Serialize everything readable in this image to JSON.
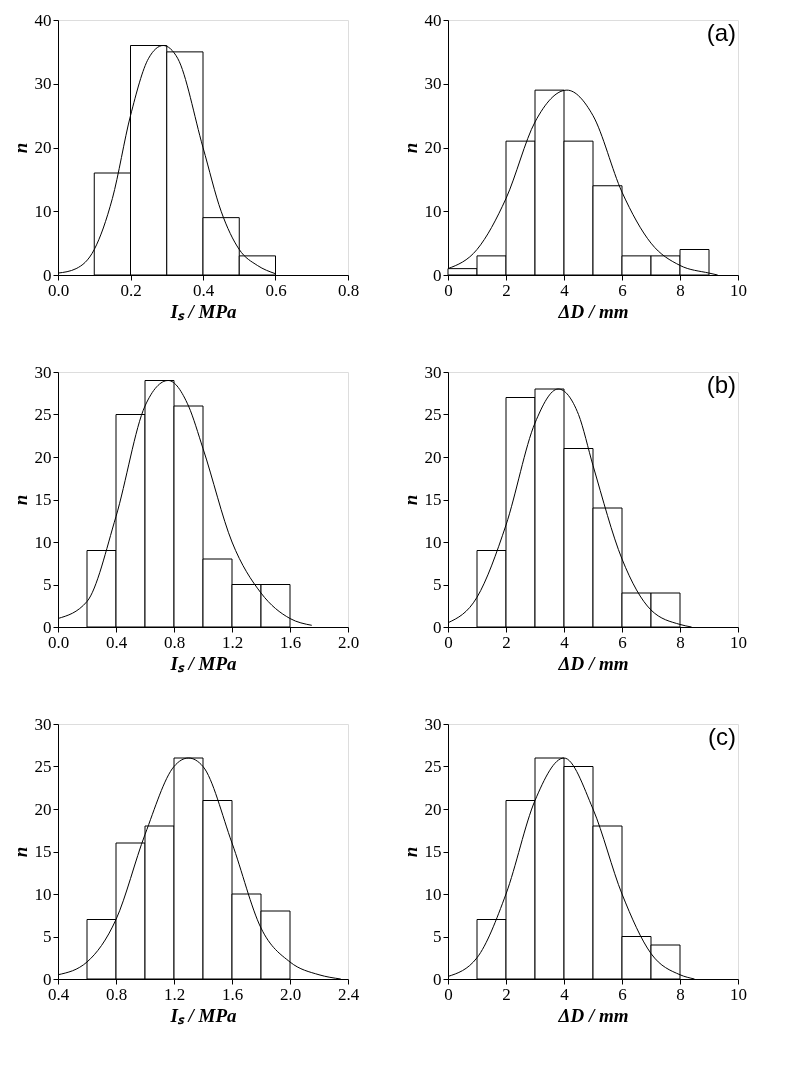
{
  "chart_data": [
    {
      "type": "histogram",
      "xlabel": "Iₛ / MPa",
      "ylabel": "n",
      "xlim": [
        0,
        0.8
      ],
      "xticks": [
        {
          "value": 0,
          "label": "0.0"
        },
        {
          "value": 0.2,
          "label": "0.2"
        },
        {
          "value": 0.4,
          "label": "0.4"
        },
        {
          "value": 0.6,
          "label": "0.6"
        },
        {
          "value": 0.8,
          "label": "0.8"
        }
      ],
      "ylim": [
        0,
        40
      ],
      "yticks": [
        0,
        10,
        20,
        30,
        40
      ],
      "grid": false,
      "series": [
        {
          "color": "#ffffff",
          "bins": [
            0.1,
            0.2,
            0.3,
            0.4,
            0.5,
            0.6
          ],
          "values": [
            16,
            36,
            35,
            9,
            3
          ]
        },
        {
          "type": "line",
          "color": "#000000",
          "x": [
            0,
            0.05,
            0.1,
            0.15,
            0.2,
            0.25,
            0.29,
            0.33,
            0.4,
            0.45,
            0.5,
            0.55,
            0.6
          ],
          "values": [
            0.3,
            1,
            4,
            12,
            25,
            34,
            36,
            34,
            20,
            10,
            4,
            1.5,
            0.2
          ]
        }
      ]
    },
    {
      "type": "histogram",
      "xlabel": "ΔD / mm",
      "ylabel": "n",
      "annotations": [
        "(a)"
      ],
      "xlim": [
        0,
        10
      ],
      "xticks": [
        0,
        2,
        4,
        6,
        8,
        10
      ],
      "ylim": [
        0,
        40
      ],
      "yticks": [
        0,
        10,
        20,
        30,
        40
      ],
      "grid": false,
      "series": [
        {
          "color": "#ffffff",
          "bins": [
            0,
            1,
            2,
            3,
            4,
            5,
            6,
            7,
            8,
            9
          ],
          "values": [
            1,
            3,
            21,
            29,
            21,
            14,
            3,
            3,
            4
          ]
        },
        {
          "type": "line",
          "color": "#000000",
          "x": [
            0,
            1,
            2,
            3,
            4.1,
            5,
            6,
            7,
            8,
            9,
            9.3
          ],
          "values": [
            1,
            4,
            12,
            24,
            29,
            25,
            13,
            5,
            1.5,
            0.3,
            0
          ]
        }
      ]
    },
    {
      "type": "histogram",
      "xlabel": "Iₛ / MPa",
      "ylabel": "n",
      "xlim": [
        0,
        2
      ],
      "xticks": [
        {
          "value": 0,
          "label": "0.0"
        },
        {
          "value": 0.4,
          "label": "0.4"
        },
        {
          "value": 0.8,
          "label": "0.8"
        },
        {
          "value": 1.2,
          "label": "1.2"
        },
        {
          "value": 1.6,
          "label": "1.6"
        },
        {
          "value": 2,
          "label": "2.0"
        }
      ],
      "ylim": [
        0,
        30
      ],
      "yticks": [
        0,
        5,
        10,
        15,
        20,
        25,
        30
      ],
      "grid": false,
      "series": [
        {
          "color": "#ffffff",
          "bins": [
            0.2,
            0.4,
            0.6,
            0.8,
            1.0,
            1.2,
            1.4,
            1.6
          ],
          "values": [
            9,
            25,
            29,
            26,
            8,
            5,
            5
          ]
        },
        {
          "type": "line",
          "color": "#000000",
          "x": [
            0,
            0.2,
            0.4,
            0.6,
            0.76,
            0.9,
            1.0,
            1.2,
            1.4,
            1.6,
            1.75
          ],
          "values": [
            1,
            3,
            13,
            26,
            29,
            26,
            21,
            10,
            4,
            1,
            0.2
          ]
        }
      ]
    },
    {
      "type": "histogram",
      "xlabel": "ΔD / mm",
      "ylabel": "n",
      "annotations": [
        "(b)"
      ],
      "xlim": [
        0,
        10
      ],
      "xticks": [
        0,
        2,
        4,
        6,
        8,
        10
      ],
      "ylim": [
        0,
        30
      ],
      "yticks": [
        0,
        5,
        10,
        15,
        20,
        25,
        30
      ],
      "grid": false,
      "series": [
        {
          "color": "#ffffff",
          "bins": [
            1,
            2,
            3,
            4,
            5,
            6,
            7,
            8
          ],
          "values": [
            9,
            27,
            28,
            21,
            14,
            4,
            4
          ]
        },
        {
          "type": "line",
          "color": "#000000",
          "x": [
            0,
            1,
            2,
            3,
            3.8,
            4.5,
            5,
            6,
            7,
            8,
            8.4
          ],
          "values": [
            0.5,
            3.5,
            12,
            24,
            28,
            25,
            19,
            8,
            2,
            0.3,
            0
          ]
        }
      ]
    },
    {
      "type": "histogram",
      "xlabel": "Iₛ / MPa",
      "ylabel": "n",
      "xlim": [
        0.4,
        2.4
      ],
      "xticks": [
        0.4,
        0.8,
        1.2,
        1.6,
        {
          "value": 2,
          "label": "2.0"
        },
        2.4
      ],
      "ylim": [
        0,
        30
      ],
      "yticks": [
        0,
        5,
        10,
        15,
        20,
        25,
        30
      ],
      "grid": false,
      "series": [
        {
          "color": "#ffffff",
          "bins": [
            0.6,
            0.8,
            1.0,
            1.2,
            1.4,
            1.6,
            1.8,
            2.0
          ],
          "values": [
            7,
            16,
            18,
            26,
            21,
            10,
            8
          ]
        },
        {
          "type": "line",
          "color": "#000000",
          "x": [
            0.4,
            0.6,
            0.8,
            1.0,
            1.2,
            1.3,
            1.4,
            1.6,
            1.8,
            2.0,
            2.2,
            2.35
          ],
          "values": [
            0.5,
            2,
            7,
            17,
            25,
            26,
            25,
            16,
            6,
            2,
            0.5,
            0
          ]
        }
      ]
    },
    {
      "type": "histogram",
      "xlabel": "ΔD / mm",
      "ylabel": "n",
      "annotations": [
        "(c)"
      ],
      "xlim": [
        0,
        10
      ],
      "xticks": [
        0,
        2,
        4,
        6,
        8,
        10
      ],
      "ylim": [
        0,
        30
      ],
      "yticks": [
        0,
        5,
        10,
        15,
        20,
        25,
        30
      ],
      "grid": false,
      "series": [
        {
          "color": "#ffffff",
          "bins": [
            1,
            2,
            3,
            4,
            5,
            6,
            7,
            8
          ],
          "values": [
            7,
            21,
            26,
            25,
            18,
            5,
            4
          ]
        },
        {
          "type": "line",
          "color": "#000000",
          "x": [
            0,
            1,
            2,
            3,
            4,
            5,
            6,
            7,
            8,
            8.5
          ],
          "values": [
            0.3,
            2.5,
            10,
            21,
            26,
            20,
            10,
            3,
            0.5,
            0
          ]
        }
      ]
    }
  ]
}
